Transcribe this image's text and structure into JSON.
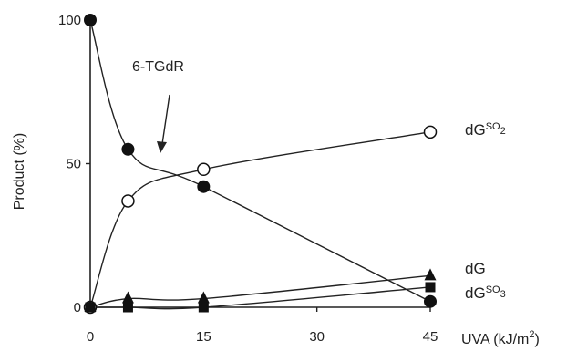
{
  "chart_data": {
    "type": "line",
    "xlabel": "UVA (kJ/m",
    "xlabel_sup": "2",
    "xlabel_close": ")",
    "ylabel": "Product (%)",
    "x_ticks": [
      "0",
      "15",
      "30",
      "45"
    ],
    "y_ticks": [
      "0",
      "50",
      "100"
    ],
    "xlim": [
      0,
      45
    ],
    "ylim": [
      0,
      100
    ],
    "grid": false,
    "annotation": "6-TGdR",
    "annotation_points_to": {
      "x": 8,
      "y": 53
    },
    "series": [
      {
        "name": "6-TGdR",
        "marker": "filled-circle",
        "x": [
          0,
          5,
          15,
          45
        ],
        "y": [
          100,
          55,
          42,
          2
        ]
      },
      {
        "name": "dG",
        "label_main": "dG",
        "label_sup": "SO",
        "label_sub": "2",
        "marker": "open-circle",
        "x": [
          0,
          5,
          15,
          45
        ],
        "y": [
          0,
          37,
          48,
          61
        ]
      },
      {
        "name": "dG",
        "label_main": "dG",
        "marker": "filled-triangle",
        "x": [
          0,
          5,
          15,
          45
        ],
        "y": [
          0,
          3,
          3,
          11
        ]
      },
      {
        "name": "dG",
        "label_main": "dG",
        "label_sup": "SO",
        "label_sub": "3",
        "marker": "filled-square",
        "x": [
          0,
          5,
          15,
          45
        ],
        "y": [
          0,
          0,
          0,
          7
        ]
      }
    ]
  }
}
